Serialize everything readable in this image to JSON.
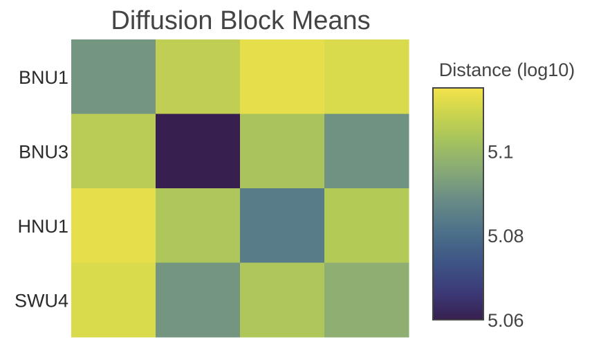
{
  "chart_data": {
    "type": "heatmap",
    "title": "Diffusion Block Means",
    "rows": [
      "BNU1",
      "BNU3",
      "HNU1",
      "SWU4"
    ],
    "columns": [
      "",
      "",
      "",
      ""
    ],
    "values": [
      [
        5.091,
        5.107,
        5.113,
        5.111
      ],
      [
        5.106,
        5.06,
        5.103,
        5.09
      ],
      [
        5.113,
        5.104,
        5.084,
        5.105
      ],
      [
        5.111,
        5.091,
        5.104,
        5.097
      ]
    ],
    "colorbar": {
      "title": "Distance (log10)",
      "colorscale": "viridis",
      "range": [
        5.06,
        5.115
      ],
      "ticks": [
        5.06,
        5.08,
        5.1
      ],
      "tick_labels": [
        "5.06",
        "5.08",
        "5.1"
      ]
    }
  }
}
